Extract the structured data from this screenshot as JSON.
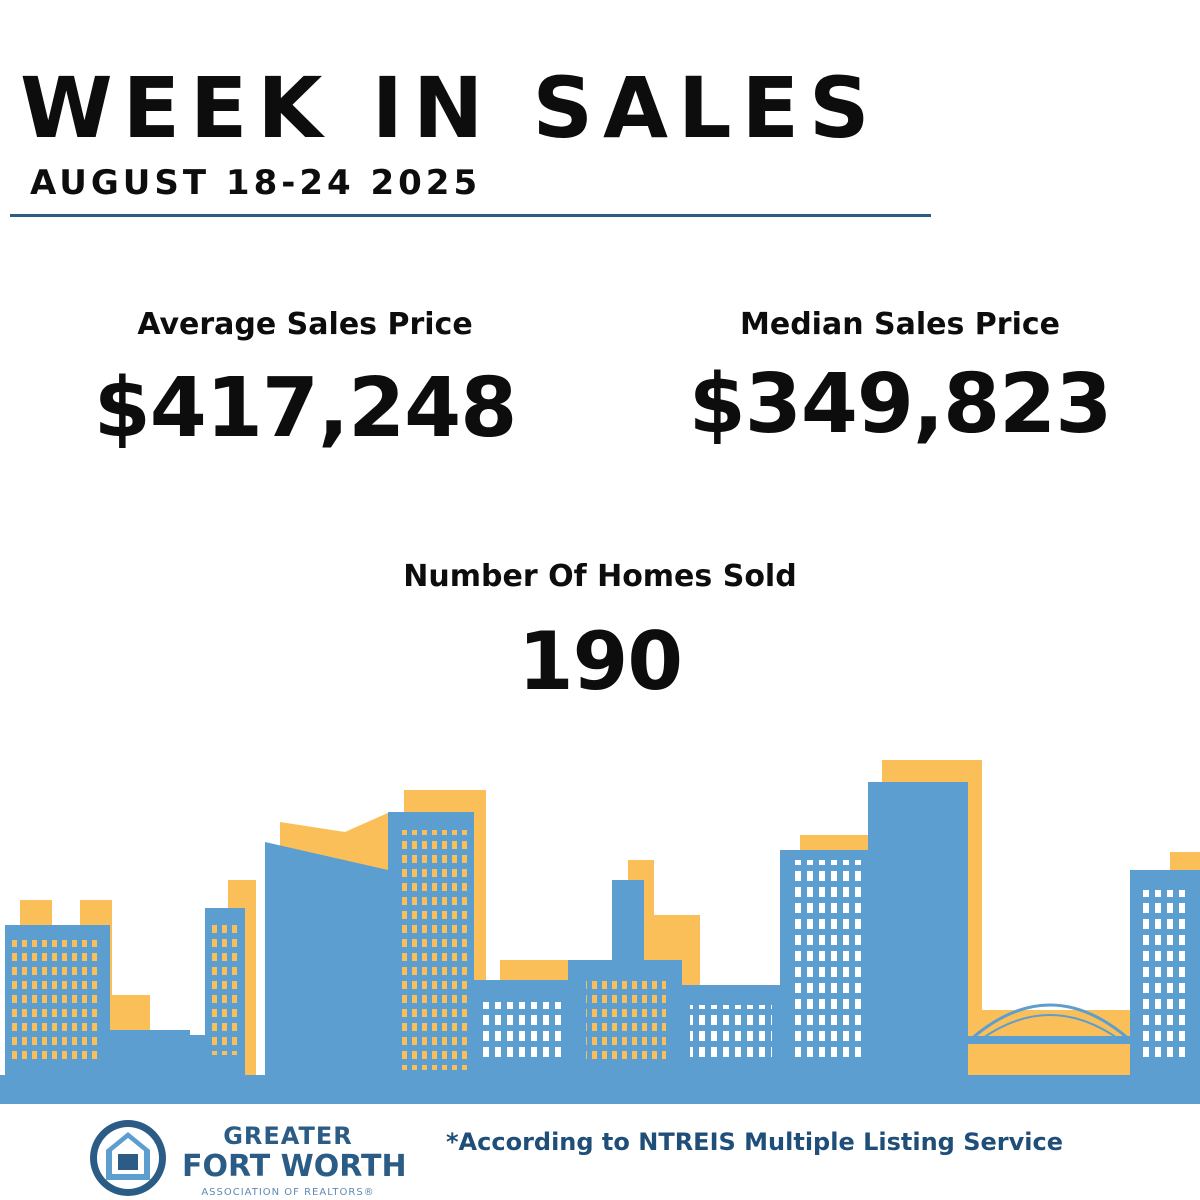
{
  "header": {
    "title": "WEEK IN SALES",
    "date_range": "AUGUST 18-24 2025"
  },
  "stats": {
    "average": {
      "label": "Average Sales Price",
      "value": "$417,248"
    },
    "median": {
      "label": "Median Sales Price",
      "value": "$349,823"
    },
    "homes_sold": {
      "label": "Number Of Homes Sold",
      "value": "190"
    }
  },
  "footer": {
    "logo": {
      "line1": "GREATER",
      "line2": "FORT WORTH",
      "line3": "ASSOCIATION OF REALTORS®"
    },
    "note": "*According to NTREIS Multiple Listing Service"
  },
  "colors": {
    "skyline_blue": "#5b9ecf",
    "skyline_yellow": "#fbbf59",
    "brand_navy": "#2b5c86",
    "text": "#0d0d0d"
  },
  "icons": {
    "skyline": "city-skyline-illustration",
    "logo": "gfw-house-logo-icon"
  }
}
